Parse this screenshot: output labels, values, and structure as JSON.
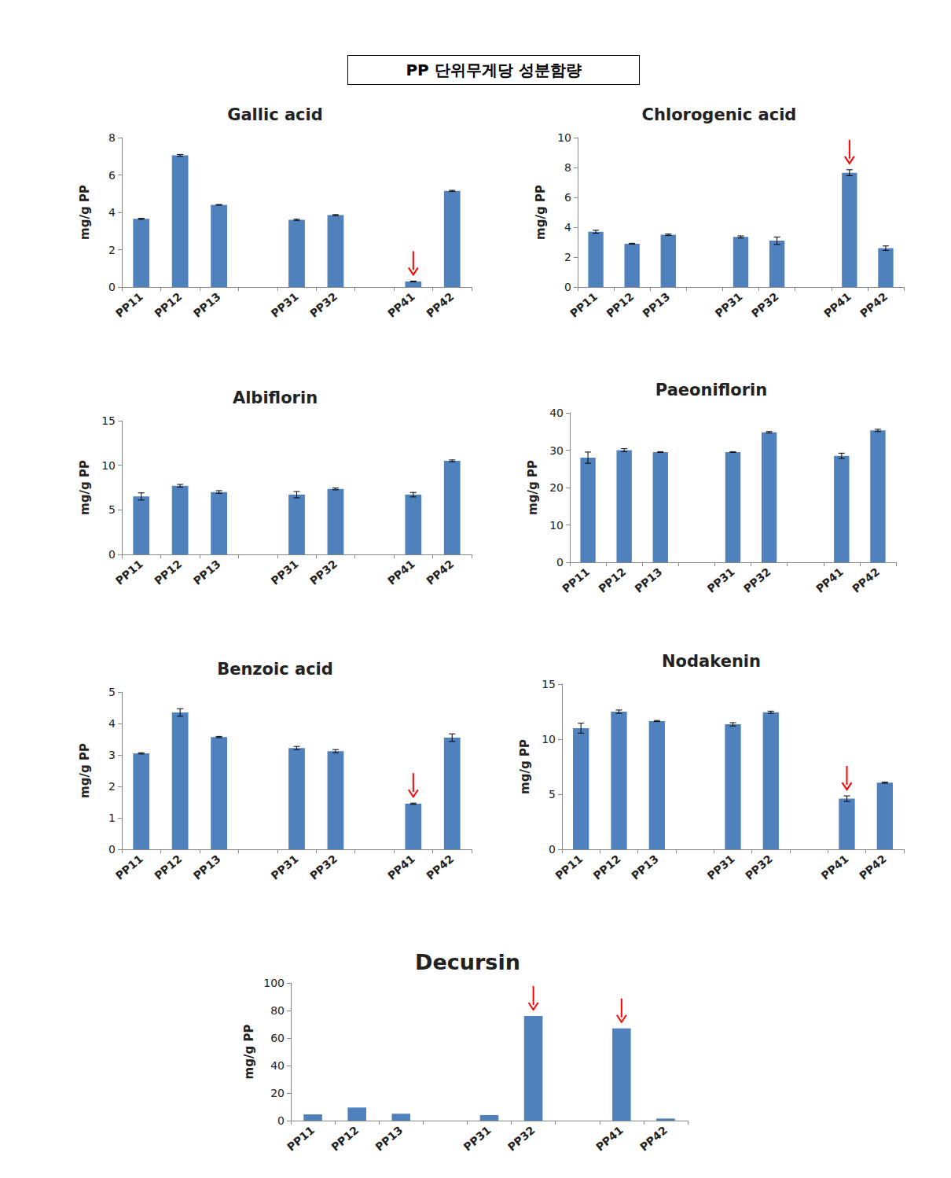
{
  "header": "PP 단위무게당 성분함량",
  "chart_data": [
    {
      "type": "bar",
      "title": "Gallic acid",
      "y_label": "mg/g PP",
      "color": "#4f81bd",
      "grid": false,
      "categories": [
        "PP11",
        "PP12",
        "PP13",
        null,
        "PP31",
        "PP32",
        null,
        "PP41",
        "PP42"
      ],
      "values": [
        3.65,
        7.05,
        4.4,
        null,
        3.6,
        3.85,
        null,
        0.3,
        5.15
      ],
      "errors": [
        0.03,
        0.05,
        0.02,
        null,
        0.03,
        0.03,
        null,
        0.02,
        0.03
      ],
      "arrows": [
        "PP41"
      ],
      "ylim": [
        0,
        8
      ],
      "yticks": [
        0,
        2,
        4,
        6,
        8
      ]
    },
    {
      "type": "bar",
      "title": "Chlorogenic acid",
      "y_label": "mg/g PP",
      "color": "#4f81bd",
      "grid": false,
      "categories": [
        "PP11",
        "PP12",
        "PP13",
        null,
        "PP31",
        "PP32",
        null,
        "PP41",
        "PP42"
      ],
      "values": [
        3.7,
        2.9,
        3.5,
        null,
        3.35,
        3.1,
        null,
        7.65,
        2.6
      ],
      "errors": [
        0.1,
        0.03,
        0.05,
        null,
        0.07,
        0.25,
        null,
        0.2,
        0.15
      ],
      "arrows": [
        "PP41"
      ],
      "ylim": [
        0,
        10
      ],
      "yticks": [
        0,
        2,
        4,
        6,
        8,
        10
      ]
    },
    {
      "type": "bar",
      "title": "Albiflorin",
      "y_label": "mg/g PP",
      "color": "#4f81bd",
      "grid": false,
      "categories": [
        "PP11",
        "PP12",
        "PP13",
        null,
        "PP31",
        "PP32",
        null,
        "PP41",
        "PP42"
      ],
      "values": [
        6.5,
        7.7,
        7.0,
        null,
        6.7,
        7.35,
        null,
        6.7,
        10.5
      ],
      "errors": [
        0.4,
        0.15,
        0.15,
        null,
        0.35,
        0.1,
        null,
        0.25,
        0.1
      ],
      "arrows": [],
      "ylim": [
        0,
        15
      ],
      "yticks": [
        0,
        5,
        10,
        15
      ]
    },
    {
      "type": "bar",
      "title": "Paeoniflorin",
      "y_label": "mg/g PP",
      "color": "#4f81bd",
      "grid": false,
      "categories": [
        "PP11",
        "PP12",
        "PP13",
        null,
        "PP31",
        "PP32",
        null,
        "PP41",
        "PP42"
      ],
      "values": [
        28,
        30,
        29.5,
        null,
        29.5,
        34.8,
        null,
        28.5,
        35.3
      ],
      "errors": [
        1.5,
        0.4,
        0.1,
        null,
        0.1,
        0.2,
        null,
        0.7,
        0.3
      ],
      "arrows": [],
      "ylim": [
        0,
        40
      ],
      "yticks": [
        0,
        10,
        20,
        30,
        40
      ]
    },
    {
      "type": "bar",
      "title": "Benzoic acid",
      "y_label": "mg/g PP",
      "color": "#4f81bd",
      "grid": false,
      "categories": [
        "PP11",
        "PP12",
        "PP13",
        null,
        "PP31",
        "PP32",
        null,
        "PP41",
        "PP42"
      ],
      "values": [
        3.05,
        4.35,
        3.57,
        null,
        3.22,
        3.12,
        null,
        1.45,
        3.55
      ],
      "errors": [
        0.02,
        0.12,
        0.02,
        null,
        0.05,
        0.05,
        null,
        0.02,
        0.12
      ],
      "arrows": [
        "PP41"
      ],
      "ylim": [
        0,
        5
      ],
      "yticks": [
        0,
        1,
        2,
        3,
        4,
        5
      ]
    },
    {
      "type": "bar",
      "title": "Nodakenin",
      "y_label": "mg/g PP",
      "color": "#4f81bd",
      "grid": false,
      "categories": [
        "PP11",
        "PP12",
        "PP13",
        null,
        "PP31",
        "PP32",
        null,
        "PP41",
        "PP42"
      ],
      "values": [
        11.0,
        12.5,
        11.65,
        null,
        11.35,
        12.45,
        null,
        4.6,
        6.05
      ],
      "errors": [
        0.45,
        0.15,
        0.05,
        null,
        0.15,
        0.1,
        null,
        0.25,
        0.05
      ],
      "arrows": [
        "PP41"
      ],
      "ylim": [
        0,
        15
      ],
      "yticks": [
        0,
        5,
        10,
        15
      ]
    },
    {
      "type": "bar",
      "title": "Decursin",
      "y_label": "mg/g PP",
      "color": "#4f81bd",
      "grid": false,
      "categories": [
        "PP11",
        "PP12",
        "PP13",
        null,
        "PP31",
        "PP32",
        null,
        "PP41",
        "PP42"
      ],
      "values": [
        4.5,
        9.5,
        5,
        null,
        4,
        76,
        null,
        67,
        1.5
      ],
      "arrows": [
        "PP32",
        "PP41"
      ],
      "ylim": [
        0,
        100
      ],
      "yticks": [
        0,
        20,
        40,
        60,
        80,
        100
      ]
    }
  ]
}
